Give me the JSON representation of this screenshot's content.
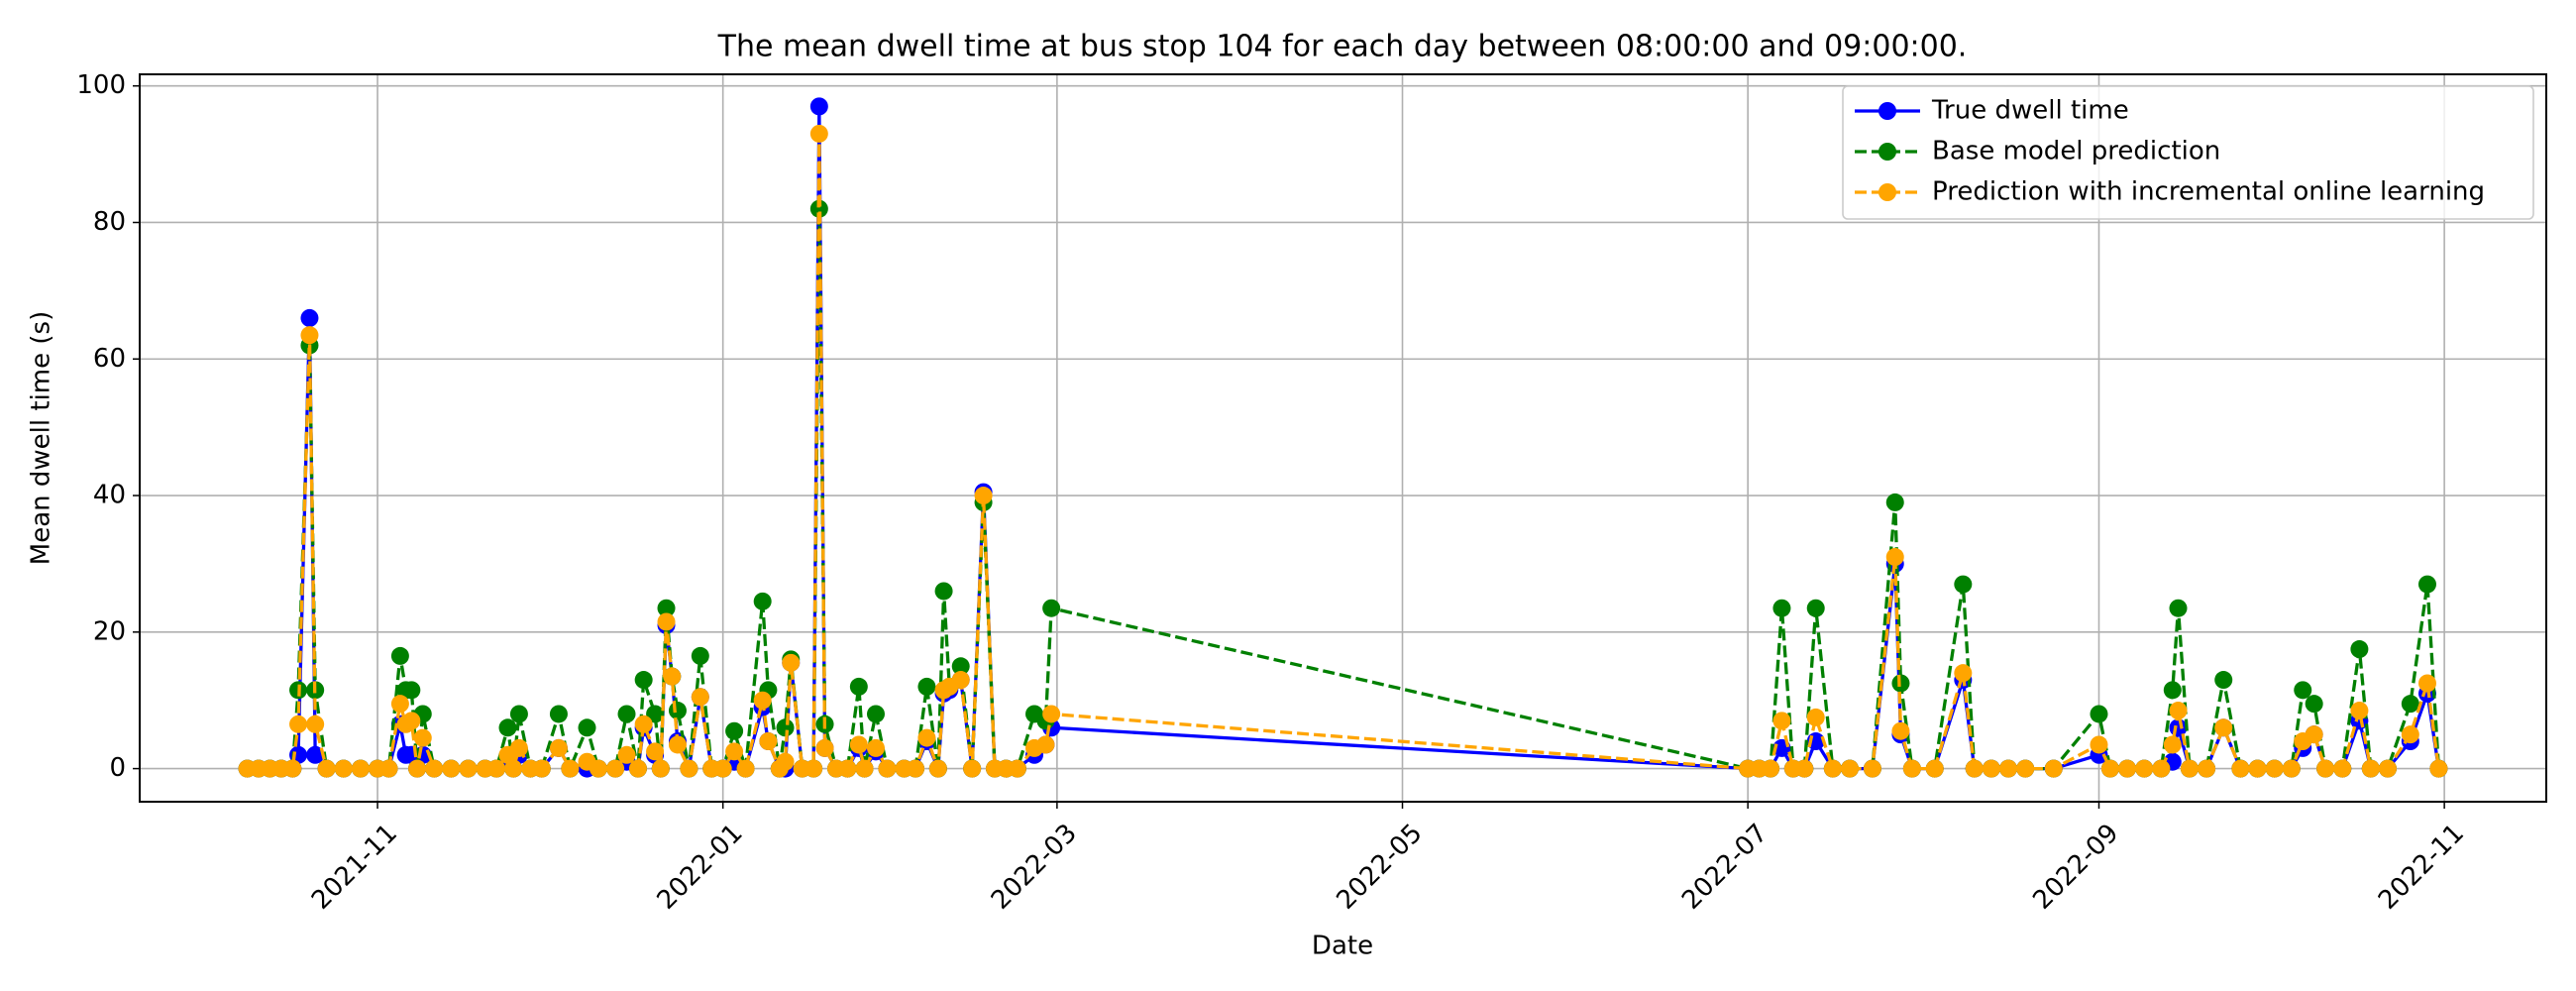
{
  "chart_data": {
    "type": "line",
    "title": "The mean dwell time at bus stop 104 for each day between 08:00:00 and 09:00:00.",
    "x_label": "Date",
    "y_label": "Mean dwell time (s)",
    "x": [
      "2021-10-09",
      "2021-10-11",
      "2021-10-13",
      "2021-10-15",
      "2021-10-17",
      "2021-10-18",
      "2021-10-20",
      "2021-10-21",
      "2021-10-23",
      "2021-10-26",
      "2021-10-29",
      "2021-11-01",
      "2021-11-03",
      "2021-11-05",
      "2021-11-06",
      "2021-11-07",
      "2021-11-08",
      "2021-11-09",
      "2021-11-11",
      "2021-11-14",
      "2021-11-17",
      "2021-11-20",
      "2021-11-22",
      "2021-11-24",
      "2021-11-25",
      "2021-11-26",
      "2021-11-28",
      "2021-11-30",
      "2021-12-03",
      "2021-12-05",
      "2021-12-08",
      "2021-12-10",
      "2021-12-13",
      "2021-12-15",
      "2021-12-17",
      "2021-12-18",
      "2021-12-20",
      "2021-12-21",
      "2021-12-22",
      "2021-12-23",
      "2021-12-24",
      "2021-12-26",
      "2021-12-28",
      "2021-12-30",
      "2022-01-01",
      "2022-01-03",
      "2022-01-05",
      "2022-01-08",
      "2022-01-09",
      "2022-01-11",
      "2022-01-12",
      "2022-01-13",
      "2022-01-15",
      "2022-01-17",
      "2022-01-18",
      "2022-01-19",
      "2022-01-21",
      "2022-01-23",
      "2022-01-25",
      "2022-01-26",
      "2022-01-28",
      "2022-01-30",
      "2022-02-02",
      "2022-02-04",
      "2022-02-06",
      "2022-02-08",
      "2022-02-09",
      "2022-02-10",
      "2022-02-12",
      "2022-02-14",
      "2022-02-16",
      "2022-02-18",
      "2022-02-20",
      "2022-02-22",
      "2022-02-25",
      "2022-02-27",
      "2022-02-28",
      "2022-07-01",
      "2022-07-03",
      "2022-07-05",
      "2022-07-07",
      "2022-07-09",
      "2022-07-11",
      "2022-07-13",
      "2022-07-16",
      "2022-07-19",
      "2022-07-23",
      "2022-07-27",
      "2022-07-28",
      "2022-07-30",
      "2022-08-03",
      "2022-08-08",
      "2022-08-10",
      "2022-08-13",
      "2022-08-16",
      "2022-08-19",
      "2022-08-24",
      "2022-09-01",
      "2022-09-03",
      "2022-09-06",
      "2022-09-09",
      "2022-09-12",
      "2022-09-14",
      "2022-09-15",
      "2022-09-17",
      "2022-09-20",
      "2022-09-23",
      "2022-09-26",
      "2022-09-29",
      "2022-10-02",
      "2022-10-05",
      "2022-10-07",
      "2022-10-09",
      "2022-10-11",
      "2022-10-14",
      "2022-10-17",
      "2022-10-19",
      "2022-10-22",
      "2022-10-26",
      "2022-10-29",
      "2022-10-31"
    ],
    "series": [
      {
        "name": "True dwell time",
        "color": "#0000ff",
        "dashed": false,
        "values": [
          0,
          0,
          0,
          0,
          0,
          2,
          66,
          2,
          0,
          0,
          0,
          0,
          0,
          6.5,
          2,
          2,
          0,
          2,
          0,
          0,
          0,
          0,
          0,
          1,
          0,
          2,
          0,
          0,
          3,
          0,
          0,
          0,
          0,
          1,
          0,
          6,
          2,
          0,
          21,
          13.5,
          4,
          0,
          10.5,
          0,
          0,
          1,
          0,
          9,
          4,
          0,
          0,
          15.5,
          0,
          0,
          97,
          3,
          0,
          0,
          3,
          0,
          2.5,
          0,
          0,
          0,
          4,
          0,
          11,
          11.5,
          13,
          0,
          40.5,
          0,
          0,
          0,
          2,
          3.5,
          6,
          0,
          0,
          0,
          3,
          0,
          0,
          4,
          0,
          0,
          0,
          30,
          5,
          0,
          0,
          13,
          0,
          0,
          0,
          0,
          0,
          2,
          0,
          0,
          0,
          0,
          1,
          6,
          0,
          0,
          6,
          0,
          0,
          0,
          0,
          3,
          5,
          0,
          0,
          7,
          0,
          0,
          4,
          11,
          0
        ]
      },
      {
        "name": "Base model prediction",
        "color": "#008000",
        "dashed": true,
        "values": [
          0,
          0,
          0,
          0,
          0,
          11.5,
          62,
          11.5,
          0,
          0,
          0,
          0,
          0,
          16.5,
          11.5,
          11.5,
          0,
          8,
          0,
          0,
          0,
          0,
          0,
          6,
          0,
          8,
          0,
          0,
          8,
          0,
          6,
          0,
          0,
          8,
          0,
          13,
          8,
          0,
          23.5,
          13.5,
          8.5,
          0,
          16.5,
          0,
          0,
          5.5,
          0,
          24.5,
          11.5,
          0,
          6,
          16,
          0,
          0,
          82,
          6.5,
          0,
          0,
          12,
          0,
          8,
          0,
          0,
          0,
          12,
          0,
          26,
          12,
          15,
          0,
          39,
          0,
          0,
          0,
          8,
          7,
          23.5,
          0,
          0,
          0,
          23.5,
          0,
          0,
          23.5,
          0,
          0,
          0,
          39,
          12.5,
          0,
          0,
          27,
          0,
          0,
          0,
          0,
          0,
          8,
          0,
          0,
          0,
          0,
          11.5,
          23.5,
          0,
          0,
          13,
          0,
          0,
          0,
          0,
          11.5,
          9.5,
          0,
          0,
          17.5,
          0,
          0,
          9.5,
          27,
          0
        ]
      },
      {
        "name": "Prediction with incremental online learning",
        "color": "#ffa500",
        "dashed": true,
        "values": [
          0,
          0,
          0,
          0,
          0,
          6.5,
          63.5,
          6.5,
          0,
          0,
          0,
          0,
          0,
          9.5,
          6.5,
          7,
          0,
          4.5,
          0,
          0,
          0,
          0,
          0,
          2,
          0,
          3,
          0,
          0,
          3,
          0,
          1,
          0,
          0,
          2,
          0,
          6.5,
          2.5,
          0,
          21.5,
          13.5,
          3.5,
          0,
          10.5,
          0,
          0,
          2.5,
          0,
          10,
          4,
          0,
          1,
          15.5,
          0,
          0,
          93,
          3,
          0,
          0,
          3.5,
          0,
          3,
          0,
          0,
          0,
          4.5,
          0,
          11.5,
          12,
          13,
          0,
          40,
          0,
          0,
          0,
          3,
          3.5,
          8,
          0,
          0,
          0,
          7,
          0,
          0,
          7.5,
          0,
          0,
          0,
          31,
          5.5,
          0,
          0,
          14,
          0,
          0,
          0,
          0,
          0,
          3.5,
          0,
          0,
          0,
          0,
          3.5,
          8.5,
          0,
          0,
          6,
          0,
          0,
          0,
          0,
          4,
          5,
          0,
          0,
          8.5,
          0,
          0,
          5,
          12.5,
          0
        ]
      }
    ],
    "xlim": [
      "2021-09-20",
      "2022-11-19"
    ],
    "xticks": [
      {
        "value": "2021-11-01",
        "label": "2021-11"
      },
      {
        "value": "2022-01-01",
        "label": "2022-01"
      },
      {
        "value": "2022-03-01",
        "label": "2022-03"
      },
      {
        "value": "2022-05-01",
        "label": "2022-05"
      },
      {
        "value": "2022-07-01",
        "label": "2022-07"
      },
      {
        "value": "2022-09-01",
        "label": "2022-09"
      },
      {
        "value": "2022-11-01",
        "label": "2022-11"
      }
    ],
    "ylim": [
      -4.85,
      101.7
    ],
    "yticks": [
      0,
      20,
      40,
      60,
      80,
      100
    ],
    "grid": true,
    "legend": "upper right"
  }
}
